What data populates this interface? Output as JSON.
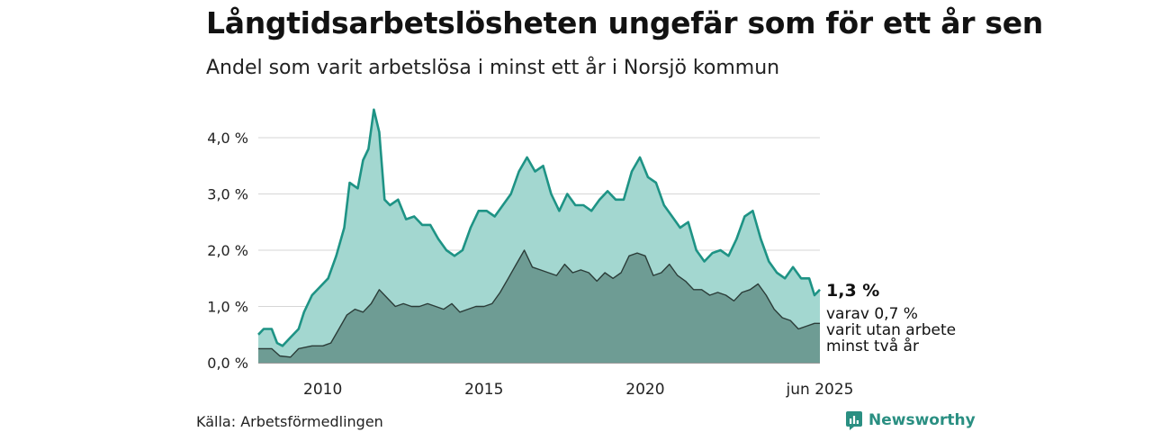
{
  "title": "Långtidsarbetslösheten ungefär som för ett år sen",
  "subtitle": "Andel som varit arbetslösa i minst ett år i Norsjö kommun",
  "source": "Källa: Arbetsförmedlingen",
  "brand": "Newsworthy",
  "colors": {
    "series1_line": "#1e9385",
    "series1_fill": "#a3d7d0",
    "series2_line": "#2b3c38",
    "series2_fill": "#6e9c94",
    "grid": "#d6d6d6",
    "brand": "#2a8f82"
  },
  "chart_data": {
    "type": "area",
    "title": "Långtidsarbetslösheten ungefär som för ett år sen",
    "subtitle": "Andel som varit arbetslösa i minst ett år i Norsjö kommun",
    "x_range": [
      "2008-01",
      "2025-06"
    ],
    "x_ticks": [
      "2010",
      "2015",
      "2020",
      "jun 2025"
    ],
    "y_ticks": [
      "0,0 %",
      "1,0 %",
      "2,0 %",
      "3,0 %",
      "4,0 %"
    ],
    "ylim": [
      0,
      4.5
    ],
    "grid": true,
    "series": [
      {
        "label_value": "1,3 %",
        "values": [
          [
            "2008-01",
            0.5
          ],
          [
            "2008-03",
            0.6
          ],
          [
            "2008-06",
            0.6
          ],
          [
            "2008-08",
            0.35
          ],
          [
            "2008-10",
            0.3
          ],
          [
            "2009-01",
            0.45
          ],
          [
            "2009-04",
            0.6
          ],
          [
            "2009-06",
            0.9
          ],
          [
            "2009-09",
            1.2
          ],
          [
            "2009-12",
            1.35
          ],
          [
            "2010-03",
            1.5
          ],
          [
            "2010-06",
            1.9
          ],
          [
            "2010-09",
            2.4
          ],
          [
            "2010-11",
            3.2
          ],
          [
            "2011-02",
            3.1
          ],
          [
            "2011-04",
            3.6
          ],
          [
            "2011-06",
            3.8
          ],
          [
            "2011-08",
            4.5
          ],
          [
            "2011-10",
            4.1
          ],
          [
            "2011-12",
            2.9
          ],
          [
            "2012-02",
            2.8
          ],
          [
            "2012-05",
            2.9
          ],
          [
            "2012-08",
            2.55
          ],
          [
            "2012-11",
            2.6
          ],
          [
            "2013-02",
            2.45
          ],
          [
            "2013-05",
            2.45
          ],
          [
            "2013-08",
            2.2
          ],
          [
            "2013-11",
            2.0
          ],
          [
            "2014-02",
            1.9
          ],
          [
            "2014-05",
            2.0
          ],
          [
            "2014-08",
            2.4
          ],
          [
            "2014-11",
            2.7
          ],
          [
            "2015-02",
            2.7
          ],
          [
            "2015-05",
            2.6
          ],
          [
            "2015-08",
            2.8
          ],
          [
            "2015-11",
            3.0
          ],
          [
            "2016-02",
            3.4
          ],
          [
            "2016-05",
            3.65
          ],
          [
            "2016-08",
            3.4
          ],
          [
            "2016-11",
            3.5
          ],
          [
            "2017-02",
            3.0
          ],
          [
            "2017-05",
            2.7
          ],
          [
            "2017-08",
            3.0
          ],
          [
            "2017-11",
            2.8
          ],
          [
            "2018-02",
            2.8
          ],
          [
            "2018-05",
            2.7
          ],
          [
            "2018-08",
            2.9
          ],
          [
            "2018-11",
            3.05
          ],
          [
            "2019-02",
            2.9
          ],
          [
            "2019-05",
            2.9
          ],
          [
            "2019-08",
            3.4
          ],
          [
            "2019-11",
            3.65
          ],
          [
            "2020-02",
            3.3
          ],
          [
            "2020-05",
            3.2
          ],
          [
            "2020-08",
            2.8
          ],
          [
            "2020-11",
            2.6
          ],
          [
            "2021-02",
            2.4
          ],
          [
            "2021-05",
            2.5
          ],
          [
            "2021-08",
            2.0
          ],
          [
            "2021-11",
            1.8
          ],
          [
            "2022-02",
            1.95
          ],
          [
            "2022-05",
            2.0
          ],
          [
            "2022-08",
            1.9
          ],
          [
            "2022-11",
            2.2
          ],
          [
            "2023-02",
            2.6
          ],
          [
            "2023-05",
            2.7
          ],
          [
            "2023-08",
            2.2
          ],
          [
            "2023-11",
            1.8
          ],
          [
            "2024-02",
            1.6
          ],
          [
            "2024-05",
            1.5
          ],
          [
            "2024-08",
            1.7
          ],
          [
            "2024-11",
            1.5
          ],
          [
            "2025-02",
            1.5
          ],
          [
            "2025-04",
            1.2
          ],
          [
            "2025-06",
            1.3
          ]
        ]
      },
      {
        "label_value": "varav 0,7 %",
        "label_lines": [
          "varav 0,7 %",
          "varit utan arbete",
          "minst två år"
        ],
        "values": [
          [
            "2008-01",
            0.25
          ],
          [
            "2008-06",
            0.25
          ],
          [
            "2008-09",
            0.12
          ],
          [
            "2009-01",
            0.1
          ],
          [
            "2009-04",
            0.25
          ],
          [
            "2009-09",
            0.3
          ],
          [
            "2010-01",
            0.3
          ],
          [
            "2010-04",
            0.35
          ],
          [
            "2010-07",
            0.6
          ],
          [
            "2010-10",
            0.85
          ],
          [
            "2011-01",
            0.95
          ],
          [
            "2011-04",
            0.9
          ],
          [
            "2011-07",
            1.05
          ],
          [
            "2011-10",
            1.3
          ],
          [
            "2012-01",
            1.15
          ],
          [
            "2012-04",
            1.0
          ],
          [
            "2012-07",
            1.05
          ],
          [
            "2012-10",
            1.0
          ],
          [
            "2013-01",
            1.0
          ],
          [
            "2013-04",
            1.05
          ],
          [
            "2013-07",
            1.0
          ],
          [
            "2013-10",
            0.95
          ],
          [
            "2014-01",
            1.05
          ],
          [
            "2014-04",
            0.9
          ],
          [
            "2014-07",
            0.95
          ],
          [
            "2014-10",
            1.0
          ],
          [
            "2015-01",
            1.0
          ],
          [
            "2015-04",
            1.05
          ],
          [
            "2015-07",
            1.25
          ],
          [
            "2015-10",
            1.5
          ],
          [
            "2016-01",
            1.75
          ],
          [
            "2016-04",
            2.0
          ],
          [
            "2016-07",
            1.7
          ],
          [
            "2016-10",
            1.65
          ],
          [
            "2017-01",
            1.6
          ],
          [
            "2017-04",
            1.55
          ],
          [
            "2017-07",
            1.75
          ],
          [
            "2017-10",
            1.6
          ],
          [
            "2018-01",
            1.65
          ],
          [
            "2018-04",
            1.6
          ],
          [
            "2018-07",
            1.45
          ],
          [
            "2018-10",
            1.6
          ],
          [
            "2019-01",
            1.5
          ],
          [
            "2019-04",
            1.6
          ],
          [
            "2019-07",
            1.9
          ],
          [
            "2019-10",
            1.95
          ],
          [
            "2020-01",
            1.9
          ],
          [
            "2020-04",
            1.55
          ],
          [
            "2020-07",
            1.6
          ],
          [
            "2020-10",
            1.75
          ],
          [
            "2021-01",
            1.55
          ],
          [
            "2021-04",
            1.45
          ],
          [
            "2021-07",
            1.3
          ],
          [
            "2021-10",
            1.3
          ],
          [
            "2022-01",
            1.2
          ],
          [
            "2022-04",
            1.25
          ],
          [
            "2022-07",
            1.2
          ],
          [
            "2022-10",
            1.1
          ],
          [
            "2023-01",
            1.25
          ],
          [
            "2023-04",
            1.3
          ],
          [
            "2023-07",
            1.4
          ],
          [
            "2023-10",
            1.2
          ],
          [
            "2024-01",
            0.95
          ],
          [
            "2024-04",
            0.8
          ],
          [
            "2024-07",
            0.75
          ],
          [
            "2024-10",
            0.6
          ],
          [
            "2025-01",
            0.65
          ],
          [
            "2025-04",
            0.7
          ],
          [
            "2025-06",
            0.7
          ]
        ]
      }
    ]
  }
}
